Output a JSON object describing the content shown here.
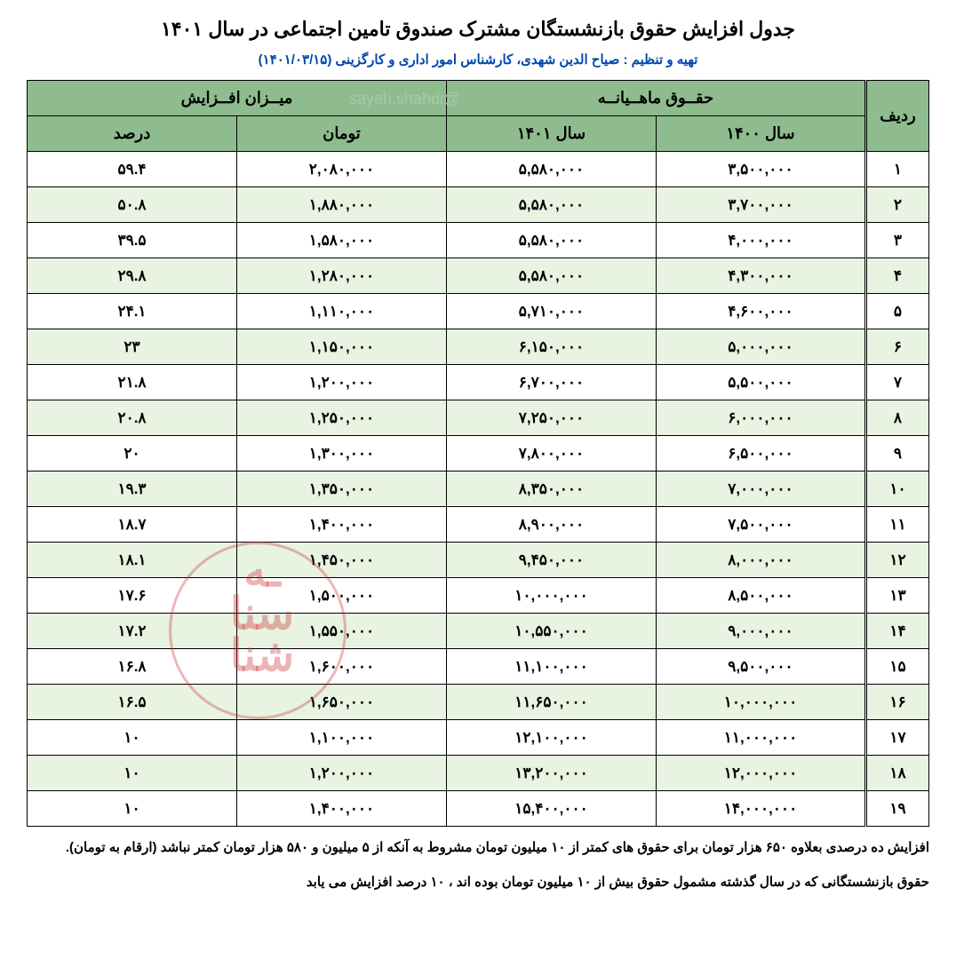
{
  "title": "جدول افزایش حقوق بازنشستگان مشترک صندوق تامین اجتماعی در سال ۱۴۰۱",
  "subtitle": "تهیه و تنظیم : صیاح الدین شهدی، کارشناس امور اداری و کارگزینی (۱۴۰۱/۰۳/۱۵)",
  "watermark_handle": "@sayah.shahdi",
  "watermark_stamp": "ـه\nسنا\nشنا",
  "header": {
    "row_label": "ردیف",
    "monthly_group": "حقــوق ماهــیانــه",
    "increase_group": "میــزان افــزایش",
    "year_1400": "سال ۱۴۰۰",
    "year_1401": "سال ۱۴۰۱",
    "toman": "تومان",
    "percent": "درصد"
  },
  "columns_order": [
    "idx",
    "y1400",
    "y1401",
    "toman",
    "percent"
  ],
  "rows": [
    {
      "idx": "۱",
      "y1400": "۳,۵۰۰,۰۰۰",
      "y1401": "۵,۵۸۰,۰۰۰",
      "toman": "۲,۰۸۰,۰۰۰",
      "percent": "۵۹.۴"
    },
    {
      "idx": "۲",
      "y1400": "۳,۷۰۰,۰۰۰",
      "y1401": "۵,۵۸۰,۰۰۰",
      "toman": "۱,۸۸۰,۰۰۰",
      "percent": "۵۰.۸"
    },
    {
      "idx": "۳",
      "y1400": "۴,۰۰۰,۰۰۰",
      "y1401": "۵,۵۸۰,۰۰۰",
      "toman": "۱,۵۸۰,۰۰۰",
      "percent": "۳۹.۵"
    },
    {
      "idx": "۴",
      "y1400": "۴,۳۰۰,۰۰۰",
      "y1401": "۵,۵۸۰,۰۰۰",
      "toman": "۱,۲۸۰,۰۰۰",
      "percent": "۲۹.۸"
    },
    {
      "idx": "۵",
      "y1400": "۴,۶۰۰,۰۰۰",
      "y1401": "۵,۷۱۰,۰۰۰",
      "toman": "۱,۱۱۰,۰۰۰",
      "percent": "۲۴.۱"
    },
    {
      "idx": "۶",
      "y1400": "۵,۰۰۰,۰۰۰",
      "y1401": "۶,۱۵۰,۰۰۰",
      "toman": "۱,۱۵۰,۰۰۰",
      "percent": "۲۳"
    },
    {
      "idx": "۷",
      "y1400": "۵,۵۰۰,۰۰۰",
      "y1401": "۶,۷۰۰,۰۰۰",
      "toman": "۱,۲۰۰,۰۰۰",
      "percent": "۲۱.۸"
    },
    {
      "idx": "۸",
      "y1400": "۶,۰۰۰,۰۰۰",
      "y1401": "۷,۲۵۰,۰۰۰",
      "toman": "۱,۲۵۰,۰۰۰",
      "percent": "۲۰.۸"
    },
    {
      "idx": "۹",
      "y1400": "۶,۵۰۰,۰۰۰",
      "y1401": "۷,۸۰۰,۰۰۰",
      "toman": "۱,۳۰۰,۰۰۰",
      "percent": "۲۰"
    },
    {
      "idx": "۱۰",
      "y1400": "۷,۰۰۰,۰۰۰",
      "y1401": "۸,۳۵۰,۰۰۰",
      "toman": "۱,۳۵۰,۰۰۰",
      "percent": "۱۹.۳"
    },
    {
      "idx": "۱۱",
      "y1400": "۷,۵۰۰,۰۰۰",
      "y1401": "۸,۹۰۰,۰۰۰",
      "toman": "۱,۴۰۰,۰۰۰",
      "percent": "۱۸.۷"
    },
    {
      "idx": "۱۲",
      "y1400": "۸,۰۰۰,۰۰۰",
      "y1401": "۹,۴۵۰,۰۰۰",
      "toman": "۱,۴۵۰,۰۰۰",
      "percent": "۱۸.۱"
    },
    {
      "idx": "۱۳",
      "y1400": "۸,۵۰۰,۰۰۰",
      "y1401": "۱۰,۰۰۰,۰۰۰",
      "toman": "۱,۵۰۰,۰۰۰",
      "percent": "۱۷.۶"
    },
    {
      "idx": "۱۴",
      "y1400": "۹,۰۰۰,۰۰۰",
      "y1401": "۱۰,۵۵۰,۰۰۰",
      "toman": "۱,۵۵۰,۰۰۰",
      "percent": "۱۷.۲"
    },
    {
      "idx": "۱۵",
      "y1400": "۹,۵۰۰,۰۰۰",
      "y1401": "۱۱,۱۰۰,۰۰۰",
      "toman": "۱,۶۰۰,۰۰۰",
      "percent": "۱۶.۸"
    },
    {
      "idx": "۱۶",
      "y1400": "۱۰,۰۰۰,۰۰۰",
      "y1401": "۱۱,۶۵۰,۰۰۰",
      "toman": "۱,۶۵۰,۰۰۰",
      "percent": "۱۶.۵"
    },
    {
      "idx": "۱۷",
      "y1400": "۱۱,۰۰۰,۰۰۰",
      "y1401": "۱۲,۱۰۰,۰۰۰",
      "toman": "۱,۱۰۰,۰۰۰",
      "percent": "۱۰"
    },
    {
      "idx": "۱۸",
      "y1400": "۱۲,۰۰۰,۰۰۰",
      "y1401": "۱۳,۲۰۰,۰۰۰",
      "toman": "۱,۲۰۰,۰۰۰",
      "percent": "۱۰"
    },
    {
      "idx": "۱۹",
      "y1400": "۱۴,۰۰۰,۰۰۰",
      "y1401": "۱۵,۴۰۰,۰۰۰",
      "toman": "۱,۴۰۰,۰۰۰",
      "percent": "۱۰"
    }
  ],
  "footnote1": "افزایش ده درصدی بعلاوه ۶۵۰ هزار تومان برای حقوق های کمتر از ۱۰ میلیون تومان مشروط به آنکه از ۵ میلیون و ۵۸۰ هزار تومان کمتر نباشد (ارقام به تومان).",
  "footnote2": "حقوق بازنشستگانی که در سال گذشته مشمول حقوق بیش از ۱۰ میلیون تومان بوده اند ، ۱۰ درصد افزایش می یابد",
  "style": {
    "header_bg": "#8fbc8f",
    "row_even_bg": "#e8f3e2",
    "row_odd_bg": "#ffffff",
    "border_color": "#000000",
    "subtitle_color": "#0047ab",
    "stamp_color": "rgba(200,40,40,0.45)"
  }
}
